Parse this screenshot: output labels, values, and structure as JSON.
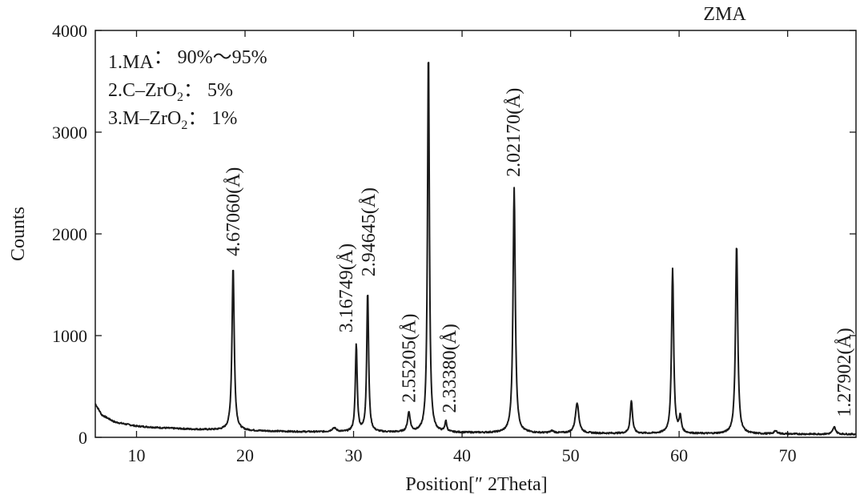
{
  "chart_data": {
    "type": "line",
    "title": "ZMA",
    "xlabel": "Position[″ 2Theta]",
    "ylabel": "Counts",
    "xlim": [
      6.2,
      76.3
    ],
    "ylim": [
      0,
      4000
    ],
    "xticks": [
      10,
      20,
      30,
      40,
      50,
      60,
      70
    ],
    "yticks": [
      0,
      1000,
      2000,
      3000,
      4000
    ],
    "grid": false,
    "legend": [
      {
        "prefix": "1.MA",
        "sub": "",
        "suffix": "： 90%～95%"
      },
      {
        "prefix": "2.C–ZrO",
        "sub": "2",
        "suffix": "： 5%"
      },
      {
        "prefix": "3.M–ZrO",
        "sub": "2",
        "suffix": "： 1%"
      }
    ],
    "baseline": [
      [
        6.2,
        330
      ],
      [
        6.8,
        220
      ],
      [
        8,
        150
      ],
      [
        10,
        110
      ],
      [
        12,
        95
      ],
      [
        15,
        80
      ],
      [
        20,
        65
      ],
      [
        25,
        55
      ],
      [
        30,
        50
      ],
      [
        35,
        48
      ],
      [
        40,
        45
      ],
      [
        50,
        40
      ],
      [
        60,
        35
      ],
      [
        70,
        32
      ],
      [
        76.3,
        30
      ]
    ],
    "peaks": [
      {
        "x": 18.9,
        "y": 1680,
        "w": 0.3
      },
      {
        "x": 28.2,
        "y": 90,
        "w": 0.6
      },
      {
        "x": 30.25,
        "y": 910,
        "w": 0.25
      },
      {
        "x": 31.3,
        "y": 1440,
        "w": 0.25
      },
      {
        "x": 35.1,
        "y": 240,
        "w": 0.35
      },
      {
        "x": 36.9,
        "y": 3820,
        "w": 0.25
      },
      {
        "x": 38.5,
        "y": 150,
        "w": 0.25
      },
      {
        "x": 44.8,
        "y": 2450,
        "w": 0.3
      },
      {
        "x": 48.3,
        "y": 60,
        "w": 0.5
      },
      {
        "x": 50.6,
        "y": 340,
        "w": 0.45
      },
      {
        "x": 55.6,
        "y": 360,
        "w": 0.3
      },
      {
        "x": 59.4,
        "y": 1660,
        "w": 0.28
      },
      {
        "x": 60.1,
        "y": 190,
        "w": 0.3
      },
      {
        "x": 65.3,
        "y": 1900,
        "w": 0.3
      },
      {
        "x": 68.9,
        "y": 60,
        "w": 0.5
      },
      {
        "x": 74.3,
        "y": 100,
        "w": 0.4
      }
    ],
    "annotations": [
      {
        "x": 18.9,
        "y": 1780,
        "text": "4.67060(Å)"
      },
      {
        "x": 29.3,
        "y": 1030,
        "text": "3.16749(Å)"
      },
      {
        "x": 31.35,
        "y": 1580,
        "text": "2.94645(Å)"
      },
      {
        "x": 35.1,
        "y": 340,
        "text": "2.55205(Å)"
      },
      {
        "x": 38.8,
        "y": 240,
        "text": "2.33380(Å)"
      },
      {
        "x": 44.7,
        "y": 2560,
        "text": "2.02170(Å)"
      },
      {
        "x": 75.2,
        "y": 200,
        "text": "1.27902(Å)"
      }
    ],
    "line_color": "#1a1a1a"
  }
}
